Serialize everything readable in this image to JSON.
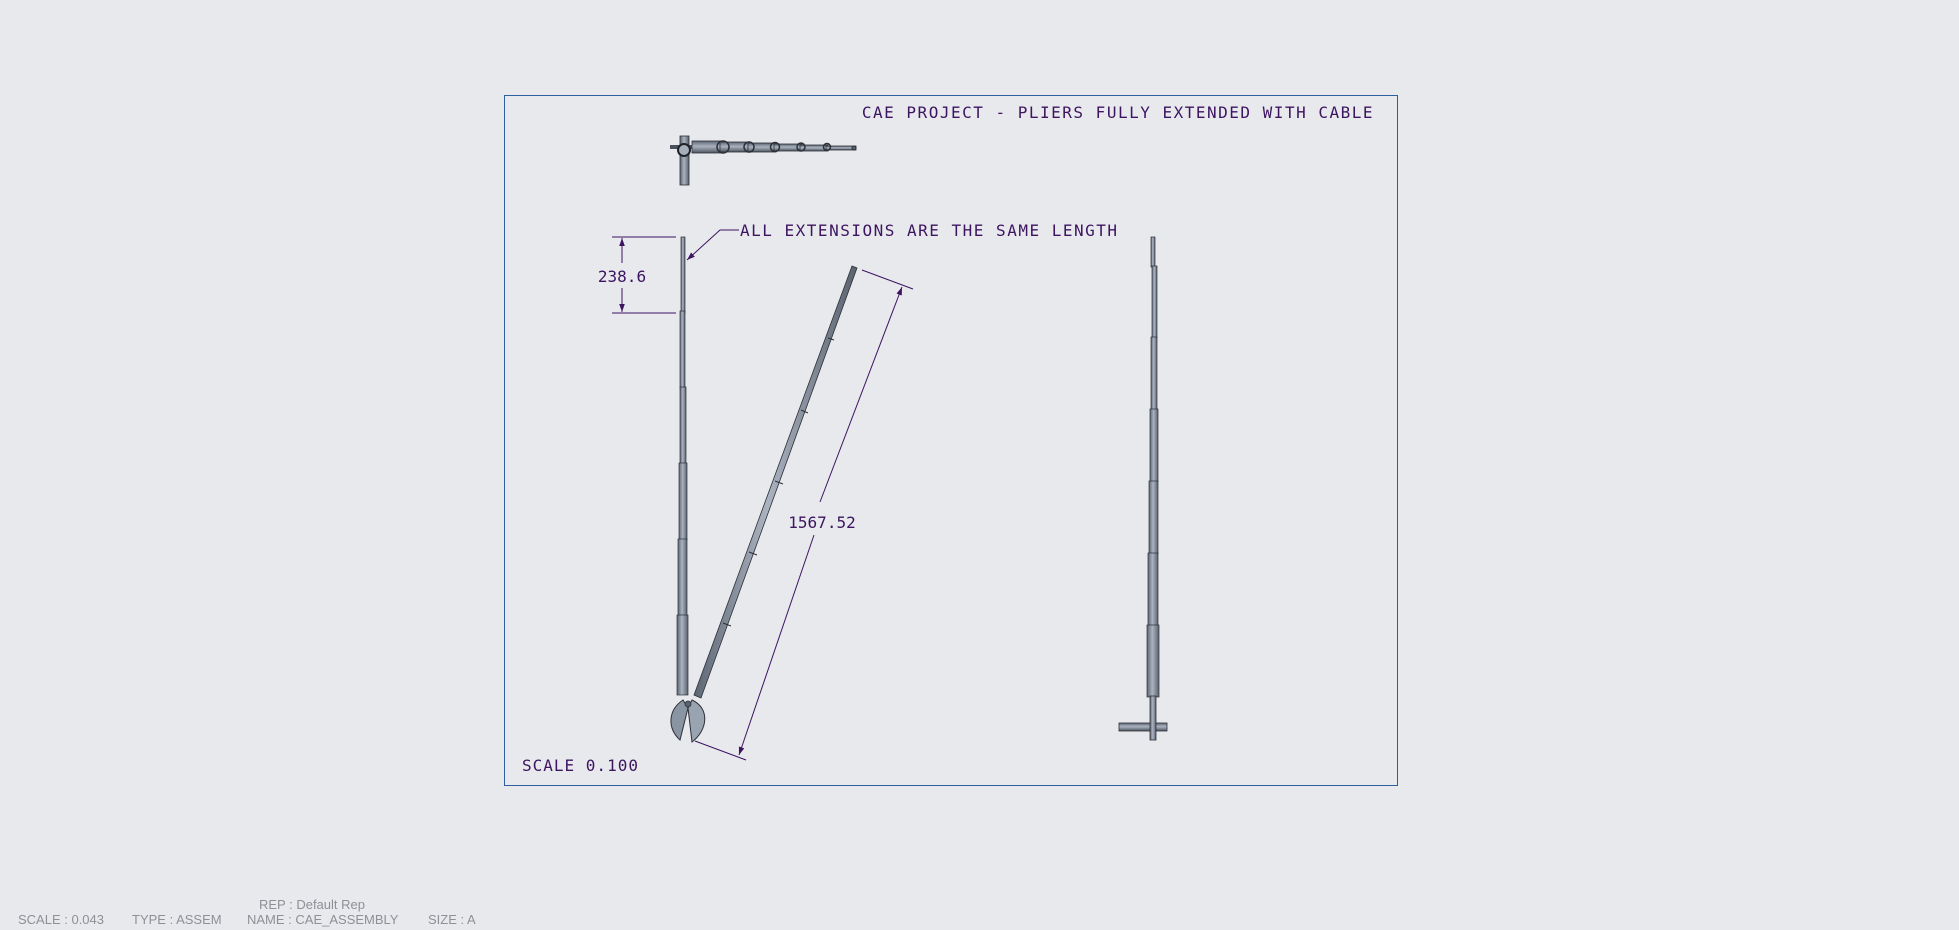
{
  "sheet": {
    "title": "CAE PROJECT - PLIERS FULLY EXTENDED WITH CABLE",
    "note": "ALL EXTENSIONS ARE THE SAME LENGTH",
    "dim_extension": "238.6",
    "dim_overall": "1567.52",
    "scale_label": "SCALE 0.100"
  },
  "status_bar": {
    "rep": "REP : Default Rep",
    "scale": "SCALE : 0.043",
    "type": "TYPE : ASSEM",
    "name": "NAME : CAE_ASSEMBLY",
    "size": "SIZE : A"
  },
  "colors": {
    "background": "#e8e9ed",
    "frame": "#2f5f9e",
    "annotation": "#3c1460",
    "part_fill": "#8a95a3",
    "part_edge": "#2c3038",
    "status_text": "#8e9096"
  }
}
